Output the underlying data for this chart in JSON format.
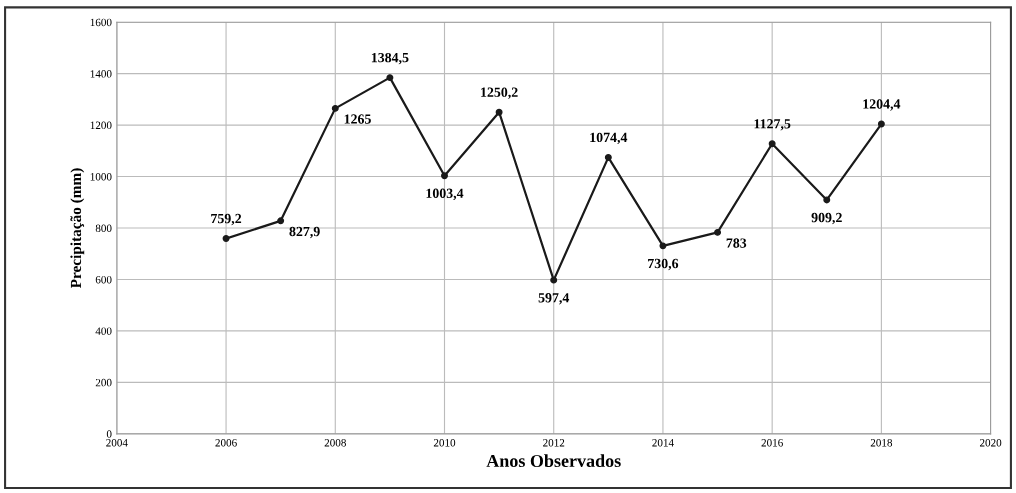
{
  "chart_data": {
    "type": "line",
    "xlabel": "Anos Observados",
    "ylabel": "Precipitação (mm)",
    "x": [
      2006,
      2007,
      2008,
      2009,
      2010,
      2011,
      2012,
      2013,
      2014,
      2015,
      2016,
      2017,
      2018
    ],
    "series": [
      {
        "color": "#1a1a1a",
        "values": [
          759.2,
          827.9,
          1265,
          1384.5,
          1003.4,
          1250.2,
          597.4,
          1074.4,
          730.6,
          783,
          1127.5,
          909.2,
          1204.4
        ],
        "value_labels": [
          "759,2",
          "827,9",
          "1265",
          "1384,5",
          "1003,4",
          "1250,2",
          "597,4",
          "1074,4",
          "730,6",
          "783",
          "1127,5",
          "909,2",
          "1204,4"
        ]
      }
    ],
    "xlim": [
      2004,
      2020
    ],
    "xticks": [
      2004,
      2006,
      2008,
      2010,
      2012,
      2014,
      2016,
      2018,
      2020
    ],
    "ylim": [
      0,
      1600
    ],
    "yticks": [
      0,
      200,
      400,
      600,
      800,
      1000,
      1200,
      1400,
      1600
    ],
    "grid": true,
    "marker": "circle",
    "line_style": "solid"
  }
}
